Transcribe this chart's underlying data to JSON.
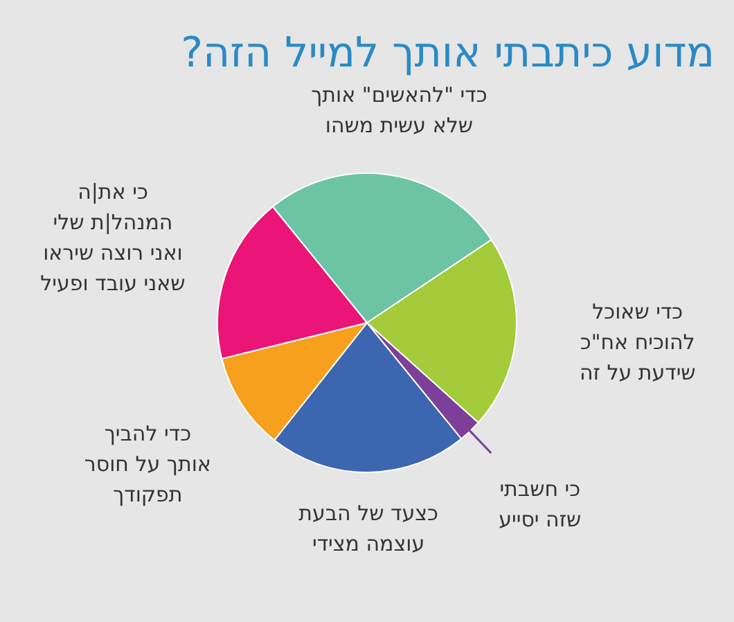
{
  "chart_data": {
    "type": "pie",
    "title": "מדוע כיתבתי אותך למייל הזה?",
    "categories": [
      "כדי \"להאשים\" אותך\nשלא עשית משהו",
      "כדי שאוכל\nלהוכיח אח\"כ\nשידעת על זה",
      "כי חשבתי\nשזה יסייע",
      "כצעד של הבעת\nעוצמה מצידי",
      "כדי להביך\nאותך על חוסר\nתפקודך",
      "כי את|ה\nהמנהל|ת שלי\nואני רוצה שיראו\nשאני עובד ופעיל"
    ],
    "values": [
      26.5,
      21,
      2.5,
      21.5,
      10.5,
      18
    ],
    "colors": [
      "#6cc4a4",
      "#a3cb3a",
      "#7e3f98",
      "#3c66b0",
      "#f6a01e",
      "#ea1577"
    ]
  }
}
